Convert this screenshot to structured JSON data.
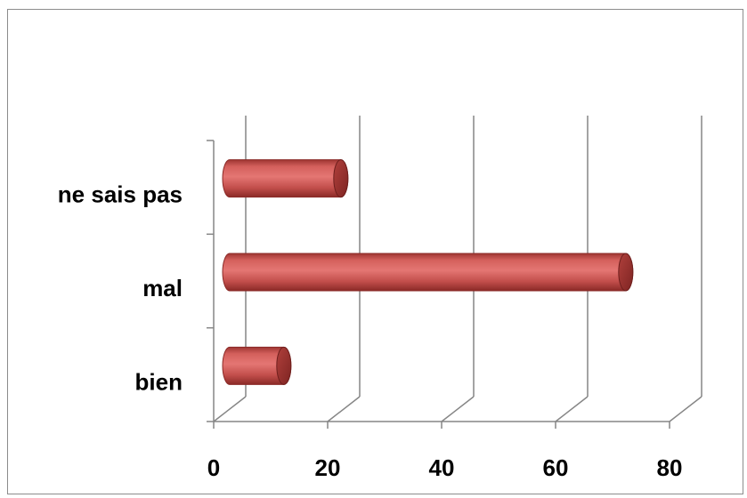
{
  "chart_data": {
    "type": "bar",
    "orientation": "horizontal",
    "style": "3d-cylinder",
    "categories": [
      "bien",
      "mal",
      "ne sais pas"
    ],
    "values": [
      12,
      72,
      22
    ],
    "xlim": [
      0,
      80
    ],
    "xticks": [
      0,
      20,
      40,
      60,
      80
    ],
    "xtick_labels": [
      "0",
      "20",
      "40",
      "60",
      "80"
    ],
    "grid": true,
    "legend": "none",
    "bar_color": "#c0504d"
  }
}
